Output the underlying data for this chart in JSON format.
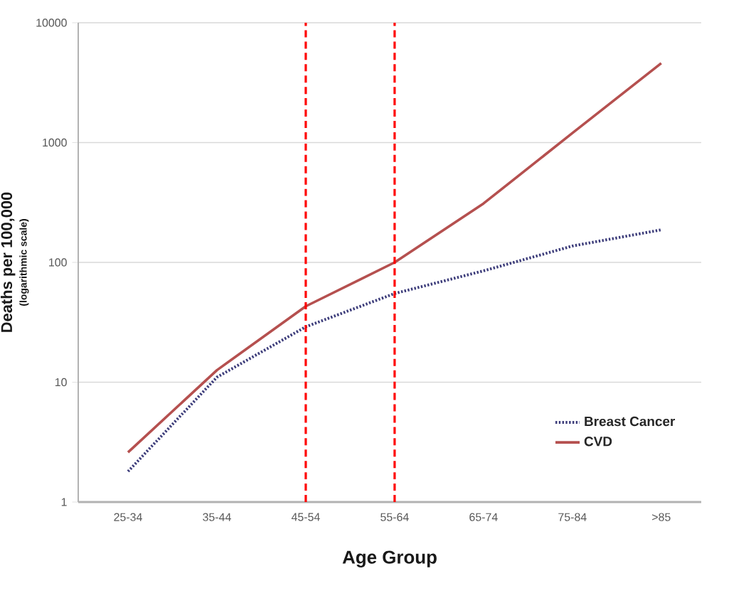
{
  "chart_data": {
    "type": "line",
    "xlabel": "Age Group",
    "ylabel": "Deaths per 100,000",
    "annotations": [
      "(logarithmic scale)"
    ],
    "categories": [
      "25-34",
      "35-44",
      "45-54",
      "55-64",
      "65-74",
      "75-84",
      ">85"
    ],
    "series": [
      {
        "name": "Breast Cancer",
        "color": "#3c3c7a",
        "line_style": "dotted",
        "values": [
          1.8,
          11,
          29,
          55,
          85,
          137,
          187
        ]
      },
      {
        "name": "CVD",
        "color": "#b5504f",
        "line_style": "solid",
        "values": [
          2.6,
          12.6,
          43,
          100,
          310,
          1200,
          4600
        ]
      }
    ],
    "log": "y",
    "ylim": [
      1,
      10000
    ],
    "yticks": [
      1,
      10,
      100,
      1000,
      10000
    ],
    "grid": "y",
    "legend": "bottom right",
    "ref_lines": [
      {
        "axis": "x",
        "value": "45-54",
        "color": "#ff0000",
        "line_style": "dashed"
      },
      {
        "axis": "x",
        "value": "55-64",
        "color": "#ff0000",
        "line_style": "dashed"
      }
    ]
  }
}
